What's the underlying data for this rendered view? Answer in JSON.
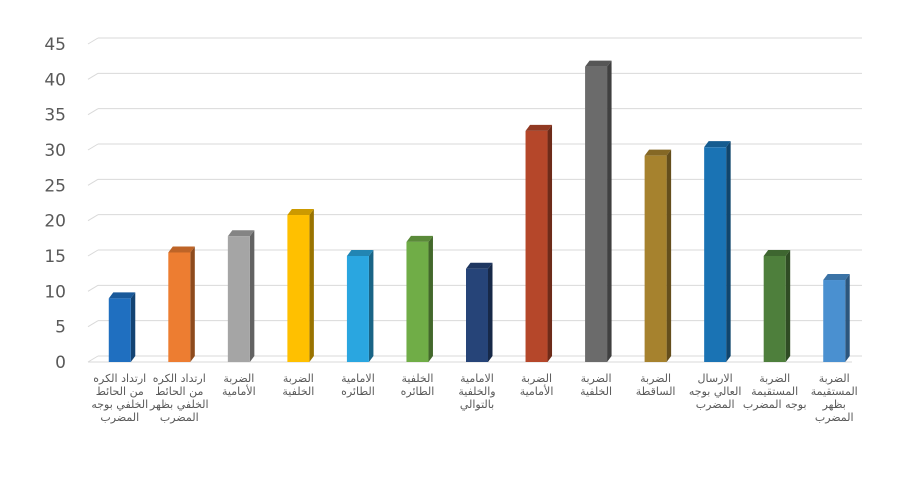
{
  "chart_data": {
    "type": "bar",
    "title": "",
    "xlabel": "",
    "ylabel": "",
    "ylim": [
      0,
      45
    ],
    "yticks": [
      0,
      5,
      10,
      15,
      20,
      25,
      30,
      35,
      40,
      45
    ],
    "grid": true,
    "style": "3d-bars",
    "categories": [
      "ارتداد الكره من الحائط الخلفي بوجه المضرب",
      "ارتداد الكره من الحائط الخلفي بظهر المضرب",
      "الضربة الأمامية",
      "الضربة الخلفية",
      "الامامية الطائره",
      "الخلفية الطائره",
      "الامامية والخلفية بالتوالي",
      "الضربة الأمامية",
      "الضربة الخلفية",
      "الضربة الساقطة",
      "الارسال العالي بوجه المضرب",
      "الضربة المستقيمة بوجه المضرب",
      "الضربة المستقيمة بظهر المضرب"
    ],
    "values": [
      9,
      15.5,
      17.8,
      20.8,
      15,
      17,
      13.2,
      32.7,
      41.8,
      29.2,
      30.4,
      15,
      11.6
    ],
    "colors": [
      "#1f6fc0",
      "#ed7d31",
      "#a5a5a5",
      "#ffc000",
      "#2aa6e0",
      "#70ad47",
      "#264478",
      "#b5472a",
      "#6b6b6b",
      "#a6822e",
      "#1a73b4",
      "#4e7f3c",
      "#4a90d0"
    ]
  }
}
